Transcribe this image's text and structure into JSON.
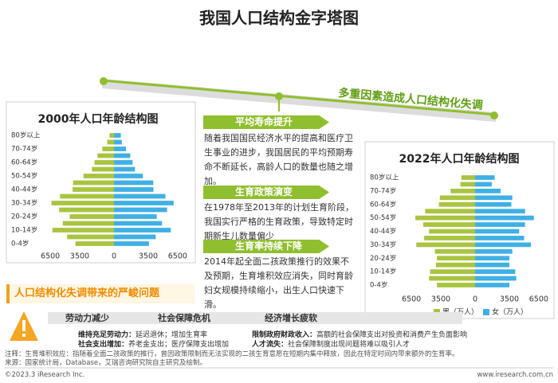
{
  "title": "我国人口结构金字塔图",
  "banner": "多重因素造成人口结构化失调",
  "chart_data": [
    {
      "type": "pyramid",
      "title": "2000年人口年龄结构图",
      "categories": [
        "0-4岁",
        null,
        "10-14岁",
        null,
        "20-24岁",
        null,
        "30-34岁",
        null,
        "40-44岁",
        null,
        "50-54岁",
        null,
        "60-64岁",
        null,
        "70-74岁",
        null,
        "80岁以上"
      ],
      "series": [
        {
          "color": "#a9c440",
          "values": [
            3930,
            4790,
            6290,
            5230,
            4520,
            5600,
            6380,
            5510,
            4230,
            4180,
            3110,
            2250,
            1990,
            1680,
            1190,
            690,
            460
          ]
        },
        {
          "color": "#3fb0e4",
          "values": [
            3570,
            4260,
            5800,
            4900,
            4360,
            5420,
            6090,
            5250,
            4030,
            4010,
            2950,
            2140,
            1900,
            1660,
            1220,
            800,
            700
          ]
        }
      ],
      "xlim": [
        -7000,
        7000
      ],
      "xticks": [
        {
          "value": -6500,
          "label": "6500"
        },
        {
          "value": -3500,
          "label": "3500"
        },
        0,
        3500,
        6500
      ]
    },
    {
      "type": "pyramid",
      "title": "2022年人口年龄结构图",
      "categories": [
        "0-4岁",
        null,
        "10-14岁",
        null,
        "20-24岁",
        null,
        "30-34岁",
        null,
        "40-44岁",
        null,
        "50-54岁",
        null,
        "60-64岁",
        null,
        "70-74岁",
        null,
        "80岁以上"
      ],
      "series": [
        {
          "name": "男（万人）",
          "color": "#a9c440",
          "values": [
            3900,
            4700,
            4600,
            4000,
            3900,
            4100,
            6000,
            5200,
            4700,
            5300,
            6100,
            5100,
            3700,
            3600,
            2500,
            1500,
            1400
          ]
        },
        {
          "name": "女（万人）",
          "color": "#3fb0e4",
          "values": [
            3500,
            4200,
            4100,
            3500,
            3500,
            3800,
            5700,
            5000,
            4500,
            5100,
            6000,
            5100,
            3700,
            3800,
            2600,
            1700,
            2000
          ]
        }
      ],
      "xlim": [
        -7000,
        7000
      ],
      "xticks": [
        {
          "value": -6500,
          "label": "6500"
        },
        {
          "value": -3500,
          "label": "3500"
        },
        0,
        3500,
        6500
      ]
    }
  ],
  "sections": [
    {
      "heading": "平均寿命提升",
      "text": "随着我国国民经济水平的提高和医疗卫生事业的进步，我国居民的平均预期寿命不断延长，高龄人口的数量也随之增加。"
    },
    {
      "heading": "生育政策演变",
      "text": "在1978年至2013年的计划生育阶段，我国实行严格的生育政策，导致特定时期新生儿数量偏少"
    },
    {
      "heading": "生育率持续下降",
      "text": "2014年起全面二孩政策推行的效果不及预期，生育堆积效应消失，同时育龄妇女规模持续缩小，出生人口快速下滑。"
    }
  ],
  "problems": {
    "title": "人口结构化失调带来的严峻问题",
    "headers": [
      "劳动力减少",
      "社会保障危机",
      "经济增长疲软"
    ],
    "items": [
      {
        "label": "维持充足劳动力：",
        "text": "延迟退休；增加生育率"
      },
      {
        "label": "社会支出增加：",
        "text": "养老金支出；医疗保障支出增加"
      },
      {
        "label": "限制政府财政收入：",
        "text": "高额的社会保障支出对投资和消费产生负面影响"
      },
      {
        "label": "人才流失：",
        "text": "社会保障制度出现问题将难以吸引人才"
      }
    ]
  },
  "footer": {
    "note": "注释：生育堆积效应：指随着全面二孩政策的推行，曾因政策限制而无法实现的二孩生育意愿在短期内集中释放，因此在特定时间内带来额外的生育率。",
    "source": "来源：国家统计局，Database，艾瑞咨询研究院自主研究及绘制。",
    "copyright": "©2023.3 iResearch Inc.",
    "url": "www.iresearch.com.cn"
  }
}
